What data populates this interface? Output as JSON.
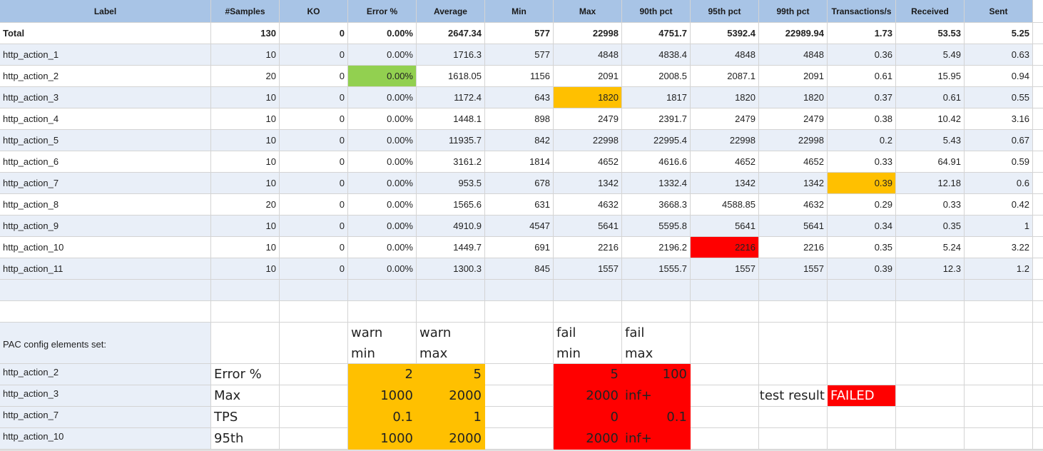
{
  "headers": [
    "Label",
    "#Samples",
    "KO",
    "Error %",
    "Average",
    "Min",
    "Max",
    "90th pct",
    "95th pct",
    "99th pct",
    "Transactions/s",
    "Received",
    "Sent"
  ],
  "total": [
    "Total",
    "130",
    "0",
    "0.00%",
    "2647.34",
    "577",
    "22998",
    "4751.7",
    "5392.4",
    "22989.94",
    "1.73",
    "53.53",
    "5.25"
  ],
  "rows": [
    [
      "http_action_1",
      "10",
      "0",
      "0.00%",
      "1716.3",
      "577",
      "4848",
      "4838.4",
      "4848",
      "4848",
      "0.36",
      "5.49",
      "0.63"
    ],
    [
      "http_action_2",
      "20",
      "0",
      "0.00%",
      "1618.05",
      "1156",
      "2091",
      "2008.5",
      "2087.1",
      "2091",
      "0.61",
      "15.95",
      "0.94"
    ],
    [
      "http_action_3",
      "10",
      "0",
      "0.00%",
      "1172.4",
      "643",
      "1820",
      "1817",
      "1820",
      "1820",
      "0.37",
      "0.61",
      "0.55"
    ],
    [
      "http_action_4",
      "10",
      "0",
      "0.00%",
      "1448.1",
      "898",
      "2479",
      "2391.7",
      "2479",
      "2479",
      "0.38",
      "10.42",
      "3.16"
    ],
    [
      "http_action_5",
      "10",
      "0",
      "0.00%",
      "11935.7",
      "842",
      "22998",
      "22995.4",
      "22998",
      "22998",
      "0.2",
      "5.43",
      "0.67"
    ],
    [
      "http_action_6",
      "10",
      "0",
      "0.00%",
      "3161.2",
      "1814",
      "4652",
      "4616.6",
      "4652",
      "4652",
      "0.33",
      "64.91",
      "0.59"
    ],
    [
      "http_action_7",
      "10",
      "0",
      "0.00%",
      "953.5",
      "678",
      "1342",
      "1332.4",
      "1342",
      "1342",
      "0.39",
      "12.18",
      "0.6"
    ],
    [
      "http_action_8",
      "20",
      "0",
      "0.00%",
      "1565.6",
      "631",
      "4632",
      "3668.3",
      "4588.85",
      "4632",
      "0.29",
      "0.33",
      "0.42"
    ],
    [
      "http_action_9",
      "10",
      "0",
      "0.00%",
      "4910.9",
      "4547",
      "5641",
      "5595.8",
      "5641",
      "5641",
      "0.34",
      "0.35",
      "1"
    ],
    [
      "http_action_10",
      "10",
      "0",
      "0.00%",
      "1449.7",
      "691",
      "2216",
      "2196.2",
      "2216",
      "2216",
      "0.35",
      "5.24",
      "3.22"
    ],
    [
      "http_action_11",
      "10",
      "0",
      "0.00%",
      "1300.3",
      "845",
      "1557",
      "1555.7",
      "1557",
      "1557",
      "0.39",
      "12.3",
      "1.2"
    ]
  ],
  "highlights": {
    "green": "#92d050",
    "yellow": "#ffc000",
    "red": "#ff0000",
    "header_blue": "#a8c4e6",
    "band_blue": "#e9eff8"
  },
  "pac": {
    "title": "PAC config elements set:",
    "warn_min": [
      "warn",
      "min"
    ],
    "warn_max": [
      "warn",
      "max"
    ],
    "fail_min": [
      "fail",
      "min"
    ],
    "fail_max": [
      "fail",
      "max"
    ],
    "rows": [
      {
        "action": "http_action_2",
        "metric": "Error %",
        "warn_min": "2",
        "warn_max": "5",
        "fail_min": "5",
        "fail_max": "100"
      },
      {
        "action": "http_action_3",
        "metric": "Max",
        "warn_min": "1000",
        "warn_max": "2000",
        "fail_min": "2000",
        "fail_max": "inf+"
      },
      {
        "action": "http_action_7",
        "metric": "TPS",
        "warn_min": "0.1",
        "warn_max": "1",
        "fail_min": "0",
        "fail_max": "0.1"
      },
      {
        "action": "http_action_10",
        "metric": "95th",
        "warn_min": "1000",
        "warn_max": "2000",
        "fail_min": "2000",
        "fail_max": "inf+"
      }
    ],
    "test_result_label": "test result",
    "test_result_value": "FAILED"
  }
}
